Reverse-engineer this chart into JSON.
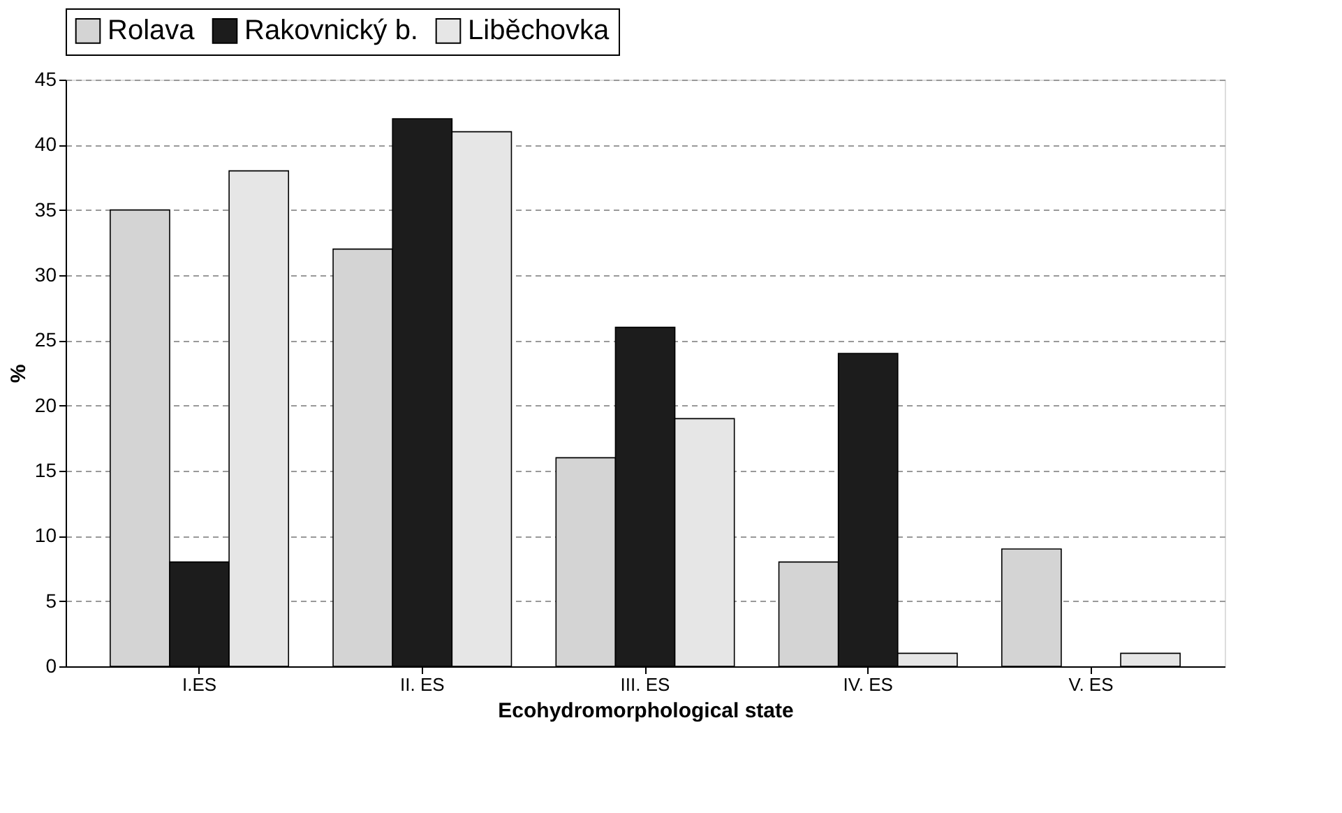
{
  "chart_data": {
    "type": "bar",
    "xlabel": "Ecohydromorphological state",
    "ylabel": "%",
    "categories": [
      "I.ES",
      "II. ES",
      "III. ES",
      "IV. ES",
      "V. ES"
    ],
    "series": [
      {
        "name": "Rolava",
        "color": "#d4d4d4",
        "values": [
          35,
          32,
          16,
          8,
          9
        ]
      },
      {
        "name": "Rakovnický b.",
        "color": "#1c1c1c",
        "values": [
          8,
          42,
          26,
          24,
          null
        ]
      },
      {
        "name": "Liběchovka",
        "color": "#e6e6e6",
        "values": [
          38,
          41,
          19,
          1,
          1
        ]
      }
    ],
    "ylim": [
      0,
      45
    ],
    "yticks": [
      0,
      5,
      10,
      15,
      20,
      25,
      30,
      35,
      40,
      45
    ],
    "grid": "y",
    "legend": "top"
  }
}
